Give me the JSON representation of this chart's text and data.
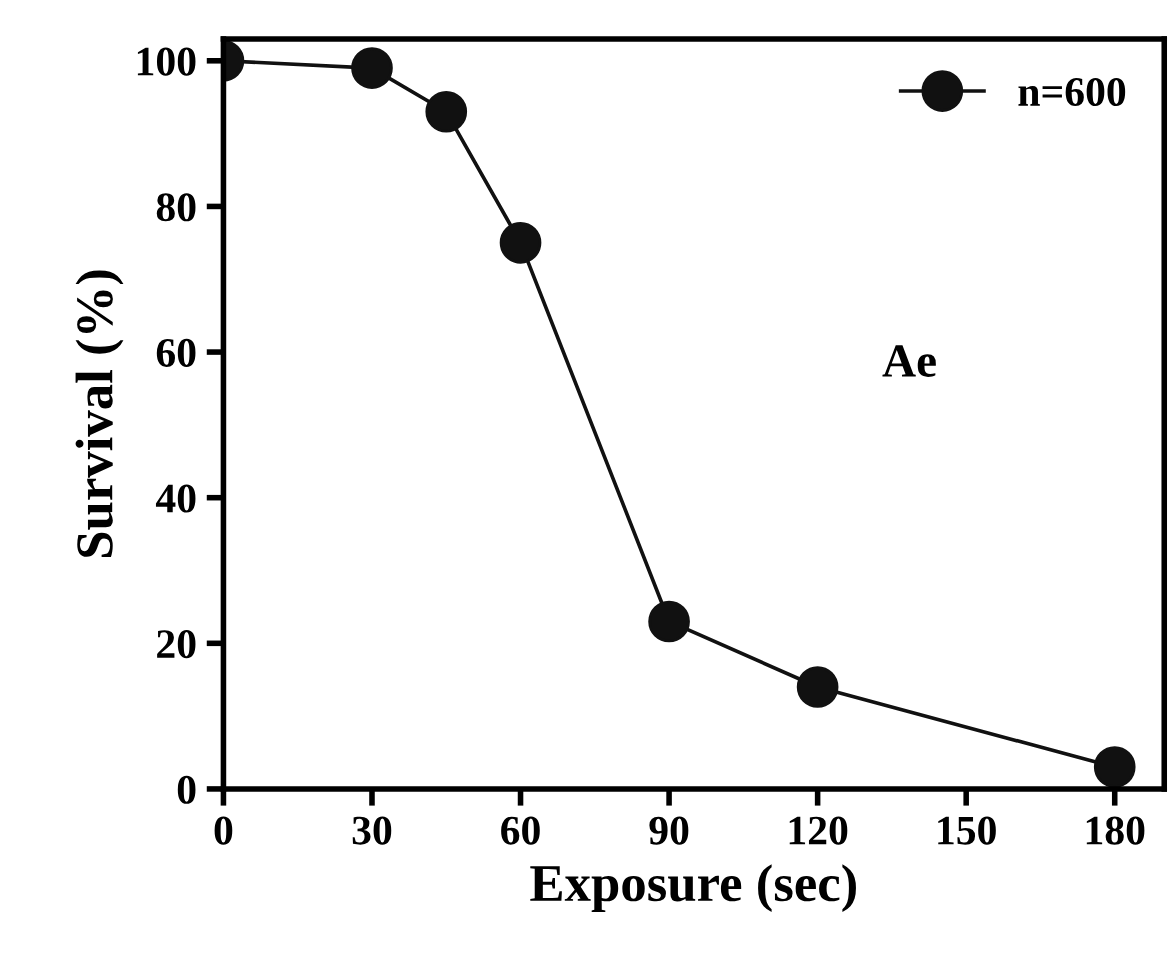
{
  "chart_data": {
    "type": "line",
    "xlabel": "Exposure (sec)",
    "ylabel": "Survival (%)",
    "annotations": [
      "Ae"
    ],
    "series": [
      {
        "name": "n=600",
        "color": "#111111",
        "x": [
          0,
          30,
          45,
          60,
          90,
          120,
          180
        ],
        "values": [
          100,
          99,
          93,
          75,
          23,
          14,
          3
        ]
      }
    ],
    "xlim": [
      0,
      190
    ],
    "xticks": [
      0,
      30,
      60,
      90,
      120,
      150,
      180
    ],
    "ylim": [
      0,
      103
    ],
    "yticks": [
      0,
      20,
      40,
      60,
      80,
      100
    ],
    "marker": "circle",
    "line_style": "solid",
    "legend": "top right",
    "grid": false
  }
}
